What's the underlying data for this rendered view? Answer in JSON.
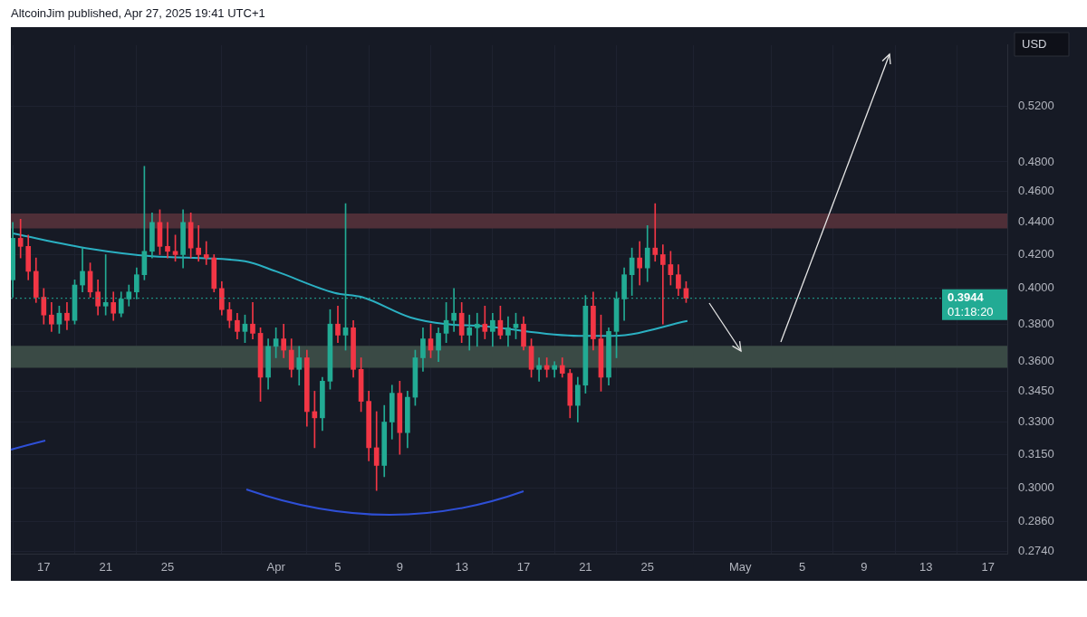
{
  "chart_data": {
    "type": "candlestick",
    "title": "AltcoinJim published, Apr 27, 2025 19:41 UTC+1",
    "ylabel": "USD",
    "x": [
      "2025-03-15T00:00",
      "2025-03-15T12:00",
      "2025-03-16T00:00",
      "2025-03-16T12:00",
      "2025-03-17T00:00",
      "2025-03-17T12:00",
      "2025-03-18T00:00",
      "2025-03-18T12:00",
      "2025-03-19T00:00",
      "2025-03-19T12:00",
      "2025-03-20T00:00",
      "2025-03-20T12:00",
      "2025-03-21T00:00",
      "2025-03-21T12:00",
      "2025-03-22T00:00",
      "2025-03-22T12:00",
      "2025-03-23T00:00",
      "2025-03-23T12:00",
      "2025-03-24T00:00",
      "2025-03-24T12:00",
      "2025-03-25T00:00",
      "2025-03-25T12:00",
      "2025-03-26T00:00",
      "2025-03-26T12:00",
      "2025-03-27T00:00",
      "2025-03-27T12:00",
      "2025-03-28T00:00",
      "2025-03-28T12:00",
      "2025-03-29T00:00",
      "2025-03-29T12:00",
      "2025-03-30T00:00",
      "2025-03-30T12:00",
      "2025-03-31T00:00",
      "2025-03-31T12:00",
      "2025-04-01T00:00",
      "2025-04-01T12:00",
      "2025-04-02T00:00",
      "2025-04-02T12:00",
      "2025-04-03T00:00",
      "2025-04-03T12:00",
      "2025-04-04T00:00",
      "2025-04-04T12:00",
      "2025-04-05T00:00",
      "2025-04-05T12:00",
      "2025-04-06T00:00",
      "2025-04-06T12:00",
      "2025-04-07T00:00",
      "2025-04-07T12:00",
      "2025-04-08T00:00",
      "2025-04-08T12:00",
      "2025-04-09T00:00",
      "2025-04-09T12:00",
      "2025-04-10T00:00",
      "2025-04-10T12:00",
      "2025-04-11T00:00",
      "2025-04-11T12:00",
      "2025-04-12T00:00",
      "2025-04-12T12:00",
      "2025-04-13T00:00",
      "2025-04-13T12:00",
      "2025-04-14T00:00",
      "2025-04-14T12:00",
      "2025-04-15T00:00",
      "2025-04-15T12:00",
      "2025-04-16T00:00",
      "2025-04-16T12:00",
      "2025-04-17T00:00",
      "2025-04-17T12:00",
      "2025-04-18T00:00",
      "2025-04-18T12:00",
      "2025-04-19T00:00",
      "2025-04-19T12:00",
      "2025-04-20T00:00",
      "2025-04-20T12:00",
      "2025-04-21T00:00",
      "2025-04-21T12:00",
      "2025-04-22T00:00",
      "2025-04-22T12:00",
      "2025-04-23T00:00",
      "2025-04-23T12:00",
      "2025-04-24T00:00",
      "2025-04-24T12:00",
      "2025-04-25T00:00",
      "2025-04-25T12:00",
      "2025-04-26T00:00",
      "2025-04-26T12:00",
      "2025-04-27T00:00",
      "2025-04-27T12:00"
    ],
    "ohlc": [
      [
        0.405,
        0.44,
        0.395,
        0.43
      ],
      [
        0.43,
        0.442,
        0.418,
        0.425
      ],
      [
        0.425,
        0.432,
        0.405,
        0.41
      ],
      [
        0.41,
        0.418,
        0.392,
        0.395
      ],
      [
        0.395,
        0.4,
        0.38,
        0.385
      ],
      [
        0.385,
        0.392,
        0.376,
        0.38
      ],
      [
        0.38,
        0.39,
        0.375,
        0.386
      ],
      [
        0.386,
        0.392,
        0.377,
        0.382
      ],
      [
        0.382,
        0.405,
        0.38,
        0.402
      ],
      [
        0.402,
        0.424,
        0.398,
        0.41
      ],
      [
        0.41,
        0.415,
        0.395,
        0.398
      ],
      [
        0.398,
        0.405,
        0.385,
        0.39
      ],
      [
        0.39,
        0.42,
        0.385,
        0.392
      ],
      [
        0.392,
        0.398,
        0.382,
        0.386
      ],
      [
        0.386,
        0.398,
        0.384,
        0.394
      ],
      [
        0.394,
        0.402,
        0.39,
        0.398
      ],
      [
        0.398,
        0.412,
        0.394,
        0.408
      ],
      [
        0.408,
        0.477,
        0.405,
        0.422
      ],
      [
        0.422,
        0.446,
        0.418,
        0.44
      ],
      [
        0.44,
        0.448,
        0.42,
        0.425
      ],
      [
        0.425,
        0.44,
        0.418,
        0.422
      ],
      [
        0.422,
        0.432,
        0.416,
        0.42
      ],
      [
        0.42,
        0.448,
        0.412,
        0.44
      ],
      [
        0.44,
        0.446,
        0.418,
        0.424
      ],
      [
        0.424,
        0.438,
        0.416,
        0.42
      ],
      [
        0.42,
        0.428,
        0.414,
        0.418
      ],
      [
        0.418,
        0.42,
        0.398,
        0.4
      ],
      [
        0.4,
        0.404,
        0.385,
        0.388
      ],
      [
        0.388,
        0.392,
        0.378,
        0.382
      ],
      [
        0.382,
        0.386,
        0.372,
        0.376
      ],
      [
        0.376,
        0.385,
        0.37,
        0.38
      ],
      [
        0.38,
        0.392,
        0.372,
        0.375
      ],
      [
        0.375,
        0.378,
        0.34,
        0.352
      ],
      [
        0.352,
        0.372,
        0.346,
        0.368
      ],
      [
        0.368,
        0.378,
        0.362,
        0.372
      ],
      [
        0.372,
        0.38,
        0.362,
        0.366
      ],
      [
        0.366,
        0.372,
        0.352,
        0.356
      ],
      [
        0.356,
        0.368,
        0.348,
        0.362
      ],
      [
        0.362,
        0.366,
        0.328,
        0.335
      ],
      [
        0.335,
        0.345,
        0.318,
        0.332
      ],
      [
        0.332,
        0.352,
        0.326,
        0.35
      ],
      [
        0.35,
        0.388,
        0.346,
        0.38
      ],
      [
        0.38,
        0.39,
        0.37,
        0.374
      ],
      [
        0.374,
        0.452,
        0.366,
        0.378
      ],
      [
        0.378,
        0.382,
        0.352,
        0.356
      ],
      [
        0.356,
        0.362,
        0.335,
        0.34
      ],
      [
        0.34,
        0.345,
        0.312,
        0.318
      ],
      [
        0.318,
        0.335,
        0.299,
        0.31
      ],
      [
        0.31,
        0.338,
        0.305,
        0.33
      ],
      [
        0.33,
        0.348,
        0.322,
        0.344
      ],
      [
        0.344,
        0.35,
        0.315,
        0.325
      ],
      [
        0.325,
        0.345,
        0.318,
        0.342
      ],
      [
        0.342,
        0.366,
        0.338,
        0.362
      ],
      [
        0.362,
        0.378,
        0.355,
        0.372
      ],
      [
        0.372,
        0.38,
        0.362,
        0.366
      ],
      [
        0.366,
        0.378,
        0.36,
        0.375
      ],
      [
        0.375,
        0.392,
        0.37,
        0.382
      ],
      [
        0.382,
        0.4,
        0.376,
        0.386
      ],
      [
        0.386,
        0.392,
        0.37,
        0.374
      ],
      [
        0.374,
        0.385,
        0.366,
        0.378
      ],
      [
        0.378,
        0.386,
        0.368,
        0.38
      ],
      [
        0.38,
        0.39,
        0.372,
        0.376
      ],
      [
        0.376,
        0.386,
        0.368,
        0.382
      ],
      [
        0.382,
        0.39,
        0.372,
        0.374
      ],
      [
        0.374,
        0.384,
        0.368,
        0.378
      ],
      [
        0.378,
        0.386,
        0.372,
        0.38
      ],
      [
        0.38,
        0.384,
        0.366,
        0.368
      ],
      [
        0.368,
        0.372,
        0.352,
        0.356
      ],
      [
        0.356,
        0.362,
        0.35,
        0.358
      ],
      [
        0.358,
        0.362,
        0.352,
        0.356
      ],
      [
        0.356,
        0.36,
        0.352,
        0.358
      ],
      [
        0.358,
        0.362,
        0.352,
        0.354
      ],
      [
        0.354,
        0.356,
        0.332,
        0.338
      ],
      [
        0.338,
        0.352,
        0.33,
        0.348
      ],
      [
        0.348,
        0.396,
        0.344,
        0.39
      ],
      [
        0.39,
        0.398,
        0.366,
        0.372
      ],
      [
        0.372,
        0.385,
        0.345,
        0.352
      ],
      [
        0.352,
        0.378,
        0.348,
        0.376
      ],
      [
        0.376,
        0.398,
        0.362,
        0.394
      ],
      [
        0.394,
        0.412,
        0.382,
        0.408
      ],
      [
        0.408,
        0.424,
        0.396,
        0.418
      ],
      [
        0.418,
        0.428,
        0.402,
        0.412
      ],
      [
        0.412,
        0.438,
        0.404,
        0.424
      ],
      [
        0.424,
        0.452,
        0.416,
        0.42
      ],
      [
        0.42,
        0.426,
        0.38,
        0.414
      ],
      [
        0.414,
        0.422,
        0.402,
        0.408
      ],
      [
        0.408,
        0.414,
        0.396,
        0.4
      ],
      [
        0.4,
        0.404,
        0.392,
        0.3944
      ]
    ],
    "colors": [
      "#22ab94",
      "#f23645",
      "#f23645",
      "#f23645",
      "#f23645",
      "#f23645",
      "#22ab94",
      "#f23645",
      "#22ab94",
      "#22ab94",
      "#f23645",
      "#f23645",
      "#22ab94",
      "#f23645",
      "#22ab94",
      "#22ab94",
      "#22ab94",
      "#22ab94",
      "#22ab94",
      "#f23645",
      "#f23645",
      "#f23645",
      "#22ab94",
      "#f23645",
      "#f23645",
      "#f23645",
      "#f23645",
      "#f23645",
      "#f23645",
      "#f23645",
      "#22ab94",
      "#f23645",
      "#f23645",
      "#22ab94",
      "#22ab94",
      "#f23645",
      "#f23645",
      "#22ab94",
      "#f23645",
      "#f23645",
      "#22ab94",
      "#22ab94",
      "#f23645",
      "#22ab94",
      "#f23645",
      "#f23645",
      "#f23645",
      "#f23645",
      "#22ab94",
      "#22ab94",
      "#f23645",
      "#22ab94",
      "#22ab94",
      "#22ab94",
      "#f23645",
      "#22ab94",
      "#22ab94",
      "#22ab94",
      "#f23645",
      "#22ab94",
      "#22ab94",
      "#f23645",
      "#22ab94",
      "#f23645",
      "#22ab94",
      "#22ab94",
      "#f23645",
      "#f23645",
      "#22ab94",
      "#f23645",
      "#22ab94",
      "#f23645",
      "#f23645",
      "#22ab94",
      "#22ab94",
      "#f23645",
      "#f23645",
      "#22ab94",
      "#22ab94",
      "#22ab94",
      "#22ab94",
      "#f23645",
      "#22ab94",
      "#f23645",
      "#f23645",
      "#f23645",
      "#f23645",
      "#f23645"
    ],
    "series": [
      {
        "type": "line",
        "color": "#2bb0c2",
        "x": [
          "2025-03-15",
          "2025-03-20",
          "2025-03-24",
          "2025-03-30",
          "2025-04-01",
          "2025-04-04T19:00",
          "2025-04-06T14:00",
          "2025-04-09T17:00",
          "2025-04-12",
          "2025-04-14T05:00",
          "2025-04-20T14:00",
          "2025-04-22T19:00",
          "2025-04-27T14:00"
        ],
        "values": [
          0.433,
          0.4235,
          0.419,
          0.416,
          0.41,
          0.3975,
          0.395,
          0.3836,
          0.38,
          0.379,
          0.3736,
          0.3736,
          0.3817
        ]
      }
    ],
    "xlim": [
      "2025-03-14T21:00",
      "2025-05-18T06:00"
    ],
    "xticks": [
      {
        "value": "2025-03-17",
        "label": "17"
      },
      {
        "value": "2025-03-21",
        "label": "21"
      },
      {
        "value": "2025-03-25",
        "label": "25"
      },
      {
        "value": "2025-04-01",
        "label": "Apr"
      },
      {
        "value": "2025-04-05",
        "label": "5"
      },
      {
        "value": "2025-04-09",
        "label": "9"
      },
      {
        "value": "2025-04-13",
        "label": "13"
      },
      {
        "value": "2025-04-17",
        "label": "17"
      },
      {
        "value": "2025-04-21",
        "label": "21"
      },
      {
        "value": "2025-04-25",
        "label": "25"
      },
      {
        "value": "2025-05-01",
        "label": "May"
      },
      {
        "value": "2025-05-05",
        "label": "5"
      },
      {
        "value": "2025-05-09",
        "label": "9"
      },
      {
        "value": "2025-05-13",
        "label": "13"
      },
      {
        "value": "2025-05-17",
        "label": "17"
      }
    ],
    "log": true,
    "ylim": [
      0.273,
      0.568
    ],
    "yticks": [
      {
        "value": 0.274,
        "label": "0.2740"
      },
      {
        "value": 0.286,
        "label": "0.2860"
      },
      {
        "value": 0.3,
        "label": "0.3000"
      },
      {
        "value": 0.315,
        "label": "0.3150"
      },
      {
        "value": 0.33,
        "label": "0.3300"
      },
      {
        "value": 0.345,
        "label": "0.3450"
      },
      {
        "value": 0.36,
        "label": "0.3600"
      },
      {
        "value": 0.38,
        "label": "0.3800"
      },
      {
        "value": 0.4,
        "label": "0.4000"
      },
      {
        "value": 0.42,
        "label": "0.4200"
      },
      {
        "value": 0.44,
        "label": "0.4400"
      },
      {
        "value": 0.46,
        "label": "0.4600"
      },
      {
        "value": 0.48,
        "label": "0.4800"
      },
      {
        "value": 0.52,
        "label": "0.5200"
      }
    ],
    "bands": [
      {
        "axis": "y",
        "from": 0.4361,
        "to": 0.4456,
        "color": "#4f2f38"
      },
      {
        "axis": "y",
        "from": 0.3568,
        "to": 0.3683,
        "color": "#3a4a45"
      }
    ],
    "ref_lines": [
      {
        "axis": "y",
        "value": 0.3944,
        "label": "0.3944",
        "color": "#22ab94",
        "line_style": "dotted"
      }
    ],
    "annotations": [
      "01:18:20"
    ],
    "grid": true,
    "legend": false
  }
}
